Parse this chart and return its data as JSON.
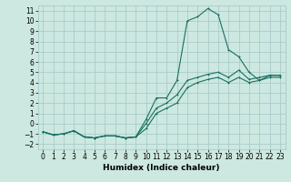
{
  "xlabel": "Humidex (Indice chaleur)",
  "background_color": "#cce8e0",
  "grid_color": "#aacccc",
  "line_color": "#1a7060",
  "xlim": [
    -0.5,
    23.5
  ],
  "ylim": [
    -2.5,
    11.5
  ],
  "xticks": [
    0,
    1,
    2,
    3,
    4,
    5,
    6,
    7,
    8,
    9,
    10,
    11,
    12,
    13,
    14,
    15,
    16,
    17,
    18,
    19,
    20,
    21,
    22,
    23
  ],
  "yticks": [
    -2,
    -1,
    0,
    1,
    2,
    3,
    4,
    5,
    6,
    7,
    8,
    9,
    10,
    11
  ],
  "line1_x": [
    0,
    1,
    2,
    3,
    4,
    5,
    6,
    7,
    8,
    9,
    10,
    11,
    12,
    13,
    14,
    15,
    16,
    17,
    18,
    19,
    20,
    21,
    22,
    23
  ],
  "line1_y": [
    -0.8,
    -1.1,
    -1.0,
    -0.7,
    -1.3,
    -1.4,
    -1.2,
    -1.2,
    -1.4,
    -1.3,
    0.4,
    2.5,
    2.5,
    4.2,
    10.0,
    10.4,
    11.2,
    10.6,
    7.2,
    6.5,
    5.0,
    4.2,
    4.7,
    4.7
  ],
  "line2_x": [
    0,
    1,
    2,
    3,
    4,
    5,
    6,
    7,
    8,
    9,
    10,
    11,
    12,
    13,
    14,
    15,
    16,
    17,
    18,
    19,
    20,
    21,
    22,
    23
  ],
  "line2_y": [
    -0.8,
    -1.1,
    -1.0,
    -0.7,
    -1.3,
    -1.4,
    -1.2,
    -1.2,
    -1.4,
    -1.3,
    0.0,
    1.5,
    2.0,
    2.8,
    4.2,
    4.5,
    4.8,
    5.0,
    4.5,
    5.2,
    4.3,
    4.5,
    4.7,
    4.7
  ],
  "line3_x": [
    0,
    1,
    2,
    3,
    4,
    5,
    6,
    7,
    8,
    9,
    10,
    11,
    12,
    13,
    14,
    15,
    16,
    17,
    18,
    19,
    20,
    21,
    22,
    23
  ],
  "line3_y": [
    -0.8,
    -1.1,
    -1.0,
    -0.7,
    -1.3,
    -1.4,
    -1.2,
    -1.2,
    -1.4,
    -1.3,
    -0.5,
    1.0,
    1.5,
    2.0,
    3.5,
    4.0,
    4.3,
    4.5,
    4.0,
    4.5,
    4.0,
    4.2,
    4.5,
    4.5
  ],
  "tick_fontsize": 5.5,
  "xlabel_fontsize": 6.5,
  "lw": 0.8,
  "ms": 2.0
}
